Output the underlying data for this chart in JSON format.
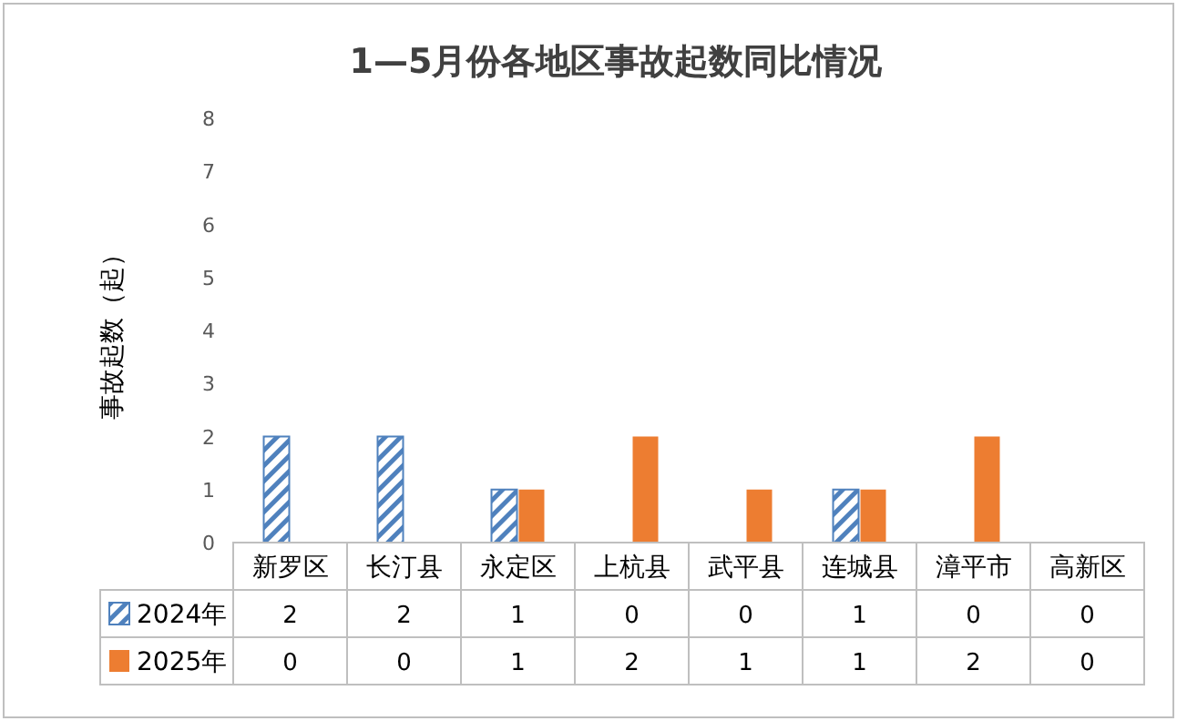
{
  "chart_data": {
    "type": "bar",
    "title": "1—5月份各地区事故起数同比情况",
    "ylabel": "事故起数（起）",
    "categories": [
      "新罗区",
      "长汀县",
      "永定区",
      "上杭县",
      "武平县",
      "连城县",
      "漳平市",
      "高新区"
    ],
    "series": [
      {
        "name": "2024年",
        "color": "#4f81bd",
        "values": [
          2,
          2,
          1,
          0,
          0,
          1,
          0,
          0
        ]
      },
      {
        "name": "2025年",
        "color": "#ed7d31",
        "values": [
          0,
          0,
          1,
          2,
          1,
          1,
          2,
          0
        ]
      }
    ],
    "ylim": [
      0,
      8
    ],
    "yticks": [
      0,
      1,
      2,
      3,
      4,
      5,
      6,
      7,
      8
    ],
    "data_labels": true,
    "legend": "bottom left",
    "grid": false
  }
}
